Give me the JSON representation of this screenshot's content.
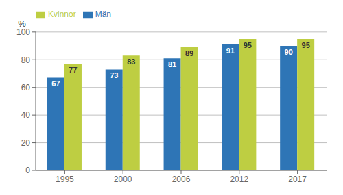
{
  "chart_data": {
    "type": "bar",
    "ylabel": "%",
    "categories": [
      "1995",
      "2000",
      "2006",
      "2012",
      "2017"
    ],
    "series": [
      {
        "name": "Män",
        "color": "#2E75B6",
        "values": [
          67,
          73,
          81,
          91,
          90
        ]
      },
      {
        "name": "Kvinnor",
        "color": "#BECE42",
        "values": [
          77,
          83,
          89,
          95,
          95
        ]
      }
    ],
    "ylim": [
      0,
      100
    ],
    "yticks": [
      0,
      20,
      40,
      60,
      80,
      100
    ],
    "grid": true,
    "legend": "upper left",
    "data_labels": true
  }
}
